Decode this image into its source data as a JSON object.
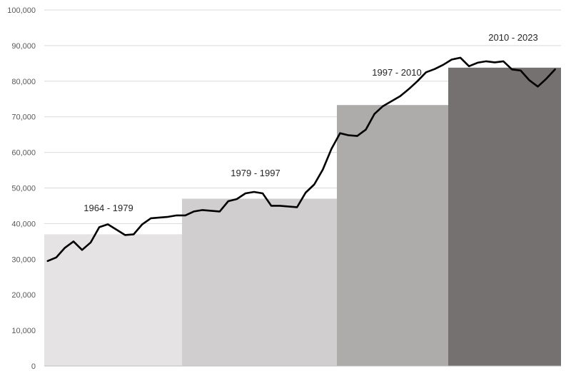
{
  "chart_data": {
    "type": "bar+line",
    "title": "",
    "xlabel": "",
    "ylabel": "",
    "ylim": [
      0,
      100000
    ],
    "yticks": [
      "0",
      "10,000",
      "20,000",
      "30,000",
      "40,000",
      "50,000",
      "60,000",
      "70,000",
      "80,000",
      "90,000",
      "100,000"
    ],
    "ytick_values": [
      0,
      10000,
      20000,
      30000,
      40000,
      50000,
      60000,
      70000,
      80000,
      90000,
      100000
    ],
    "grid": true,
    "periods": [
      {
        "label": "1964 - 1979",
        "start": 1964,
        "end": 1979,
        "value": 37000,
        "color": "#e5e3e3"
      },
      {
        "label": "1979 - 1997",
        "start": 1979,
        "end": 1997,
        "value": 47000,
        "color": "#d0cece"
      },
      {
        "label": "1997 - 2010",
        "start": 1997,
        "end": 2010,
        "value": 73300,
        "color": "#aeabab"
      },
      {
        "label": "2010 - 2023",
        "start": 2010,
        "end": 2023,
        "value": 83800,
        "color": "#767171"
      }
    ],
    "line": {
      "color": "#000000",
      "x": [
        1964,
        1965,
        1966,
        1967,
        1968,
        1969,
        1970,
        1971,
        1972,
        1973,
        1974,
        1975,
        1976,
        1977,
        1978,
        1979,
        1980,
        1981,
        1982,
        1983,
        1984,
        1985,
        1986,
        1987,
        1988,
        1989,
        1990,
        1991,
        1992,
        1993,
        1994,
        1995,
        1996,
        1997,
        1998,
        1999,
        2000,
        2001,
        2002,
        2003,
        2004,
        2005,
        2006,
        2007,
        2008,
        2009,
        2010,
        2011,
        2012,
        2013,
        2014,
        2015,
        2016,
        2017,
        2018,
        2019,
        2020,
        2021,
        2022,
        2023
      ],
      "y": [
        29500,
        30500,
        33200,
        35000,
        32600,
        34700,
        39000,
        39800,
        38300,
        36800,
        37000,
        39800,
        41500,
        41700,
        41900,
        42300,
        42300,
        43400,
        43800,
        43600,
        43400,
        46300,
        46900,
        48500,
        48900,
        48500,
        45000,
        45000,
        44800,
        44600,
        48700,
        51000,
        55200,
        61000,
        65400,
        64800,
        64600,
        66400,
        70800,
        73000,
        74400,
        75800,
        77800,
        80000,
        82500,
        83400,
        84600,
        86100,
        86600,
        84200,
        85200,
        85600,
        85300,
        85600,
        83300,
        83000,
        80300,
        78500,
        80700,
        83300
      ]
    }
  }
}
